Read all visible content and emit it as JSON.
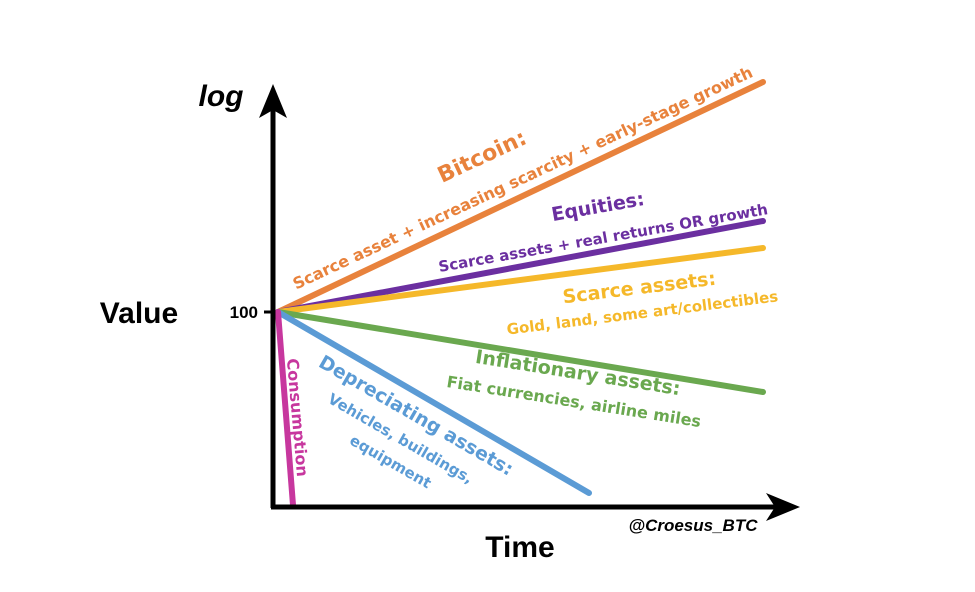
{
  "axes": {
    "y_label": "log",
    "x_label": "Time",
    "value_label": "Value",
    "origin_tick": "100",
    "credit": "@Croesus_BTC"
  },
  "colors": {
    "axis": "#000000",
    "bitcoin": "#E8823C",
    "equities": "#6B2FA0",
    "scarce": "#F5B82A",
    "inflationary": "#6AA84F",
    "depreciating": "#5B9BD5",
    "consumption": "#C7379E"
  },
  "lines": {
    "bitcoin": {
      "title": "Bitcoin:",
      "subtitle": "Scarce asset + increasing scarcity + early-stage growth"
    },
    "equities": {
      "title": "Equities:",
      "subtitle": "Scarce assets + real returns OR growth"
    },
    "scarce": {
      "title": "Scarce assets:",
      "subtitle": "Gold, land, some art/collectibles"
    },
    "inflationary": {
      "title": "Inflationary assets:",
      "subtitle": "Fiat currencies, airline miles"
    },
    "depreciating": {
      "title": "Depreciating assets:",
      "subtitle_line1": "Vehicles, buildings,",
      "subtitle_line2": "equipment"
    },
    "consumption": {
      "title": "Consumption"
    }
  }
}
